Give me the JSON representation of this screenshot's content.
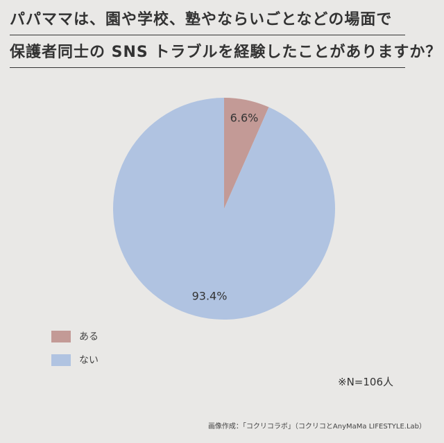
{
  "title": {
    "line1": "パパママは、園や学校、塾やならいごとなどの場面で",
    "line2": "保護者同士の SNS トラブルを経験したことがありますか？"
  },
  "chart_data": {
    "type": "pie",
    "categories": [
      "ある",
      "ない"
    ],
    "values": [
      6.6,
      93.4
    ],
    "data_labels": [
      "6.6%",
      "93.4%"
    ],
    "colors": [
      "#c39a96",
      "#b0c3e1"
    ],
    "legend_placement": "bottom-left",
    "start": "12 o'clock, clockwise"
  },
  "legend": {
    "items": [
      {
        "label": "ある",
        "color": "#c39a96"
      },
      {
        "label": "ない",
        "color": "#b0c3e1"
      }
    ]
  },
  "sample_note": "※N=106人",
  "credit": "画像作成：「コクリコラボ」（コクリコとAnyMaMa LIFESTYLE.Lab）"
}
